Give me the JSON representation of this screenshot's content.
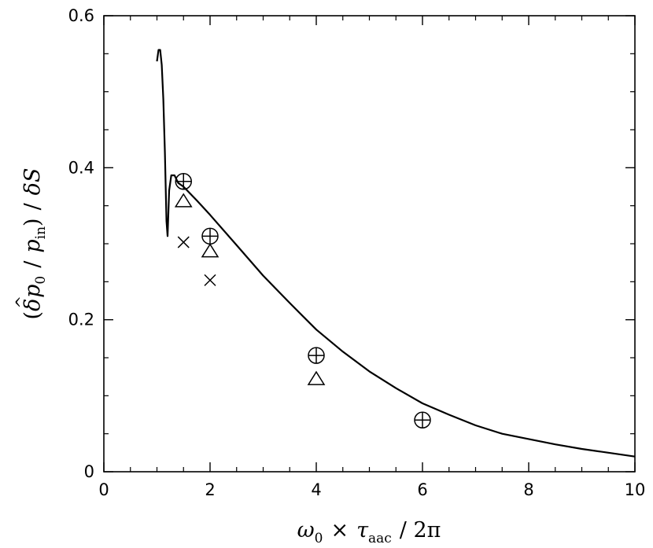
{
  "chart_data": {
    "type": "scatter",
    "xlabel": {
      "omega": "ω",
      "omega_sub": "0",
      "times": "×",
      "tau": "τ",
      "tau_sub": "aac",
      "div": "/ 2π"
    },
    "ylabel": {
      "open": "(",
      "delta": "δ",
      "hat": "^",
      "p": "p",
      "p_sub": "0",
      "slash1": "/",
      "pin": "p",
      "pin_sub": "in",
      "close": ")",
      "slash2": "/",
      "dS": "δS"
    },
    "xlim": [
      0,
      10
    ],
    "ylim": [
      0,
      0.6
    ],
    "xticks": [
      0,
      2,
      4,
      6,
      8,
      10
    ],
    "yticks": [
      0,
      0.2,
      0.4,
      0.6
    ],
    "xtick_labels": [
      "0",
      "2",
      "4",
      "6",
      "8",
      "10"
    ],
    "ytick_labels": [
      "0",
      "0.2",
      "0.4",
      "0.6"
    ],
    "grid": false,
    "series": [
      {
        "style": "line",
        "points": [
          [
            1.0,
            0.54
          ],
          [
            1.03,
            0.555
          ],
          [
            1.06,
            0.555
          ],
          [
            1.09,
            0.535
          ],
          [
            1.12,
            0.49
          ],
          [
            1.15,
            0.42
          ],
          [
            1.18,
            0.33
          ],
          [
            1.2,
            0.31
          ],
          [
            1.23,
            0.37
          ],
          [
            1.27,
            0.39
          ],
          [
            1.33,
            0.39
          ],
          [
            1.4,
            0.38
          ],
          [
            1.5,
            0.375
          ],
          [
            1.75,
            0.357
          ],
          [
            2.0,
            0.338
          ],
          [
            2.5,
            0.298
          ],
          [
            3.0,
            0.258
          ],
          [
            3.5,
            0.222
          ],
          [
            4.0,
            0.187
          ],
          [
            4.5,
            0.158
          ],
          [
            5.0,
            0.132
          ],
          [
            5.5,
            0.11
          ],
          [
            6.0,
            0.09
          ],
          [
            6.5,
            0.075
          ],
          [
            7.0,
            0.061
          ],
          [
            7.5,
            0.05
          ],
          [
            8.0,
            0.043
          ],
          [
            8.5,
            0.036
          ],
          [
            9.0,
            0.03
          ],
          [
            9.5,
            0.025
          ],
          [
            10.0,
            0.02
          ]
        ]
      },
      {
        "style": "circle-plus",
        "points": [
          [
            1.5,
            0.382
          ],
          [
            2.0,
            0.31
          ],
          [
            4.0,
            0.153
          ],
          [
            6.0,
            0.068
          ]
        ]
      },
      {
        "style": "triangle",
        "points": [
          [
            1.5,
            0.356
          ],
          [
            2.0,
            0.29
          ],
          [
            4.0,
            0.122
          ]
        ]
      },
      {
        "style": "cross",
        "points": [
          [
            1.5,
            0.302
          ],
          [
            2.0,
            0.252
          ]
        ]
      }
    ]
  }
}
